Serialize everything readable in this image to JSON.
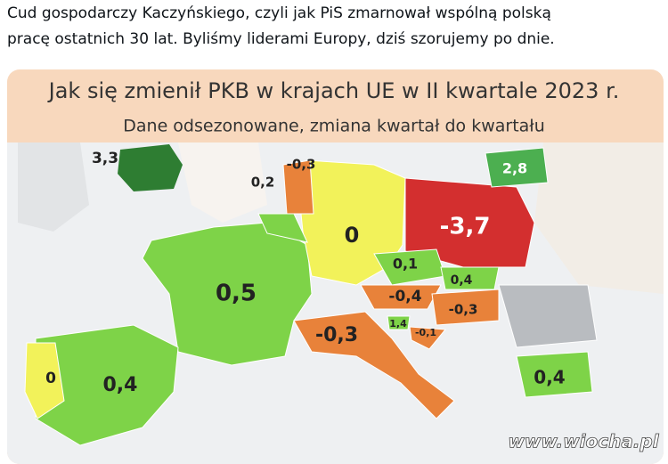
{
  "post": {
    "text_lines": [
      "Cud gospodarczy Kaczyńskiego, czyli jak PiS zmarnował wspólną polską",
      "pracę ostatnich 30 lat. Byliśmy liderami Europy, dziś szorujemy po dnie."
    ]
  },
  "map": {
    "title": "Jak się zmienił PKB w krajach UE w II kwartale 2023 r.",
    "subtitle": "Dane odsezonowane, zmiana kwartał do kwartału",
    "labels": [
      "3,3",
      "0,2",
      "-0,3",
      "0",
      "-3,7",
      "2,8",
      "0,5",
      "0,1",
      "0,4",
      "-0,4",
      "-0,3",
      "-0,3",
      "1,4",
      "-0,1",
      "0",
      "0,4",
      "0,4"
    ],
    "watermark": "www.wiocha.pl"
  }
}
